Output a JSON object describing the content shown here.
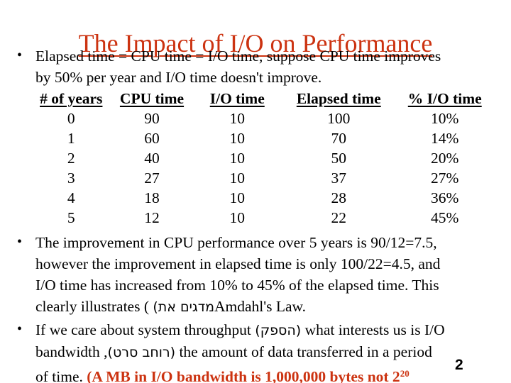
{
  "slide_title": "The Impact of I/O on Performance",
  "page_number": "2",
  "bullet_char": "•",
  "bullet1": {
    "line1": "Elapsed time = CPU time = I/O time, suppose CPU time improves",
    "line2": "by 50% per year and I/O time doesn't improve."
  },
  "table": {
    "headers": [
      "# of years",
      "CPU time",
      "I/O time",
      "Elapsed time",
      "% I/O time"
    ],
    "rows": [
      [
        "0",
        "90",
        "10",
        "100",
        "10%"
      ],
      [
        "1",
        "60",
        "10",
        "70",
        "14%"
      ],
      [
        "2",
        "40",
        "10",
        "50",
        "20%"
      ],
      [
        "3",
        "27",
        "10",
        "37",
        "27%"
      ],
      [
        "4",
        "18",
        "10",
        "28",
        "36%"
      ],
      [
        "5",
        "12",
        "10",
        "22",
        "45%"
      ]
    ]
  },
  "bullet2": {
    "line1": "The improvement in CPU performance over 5 years is 90/12=7.5,",
    "line2": "however the improvement in elapsed time is only 100/22=4.5, and",
    "line3": "I/O time has increased from 10% to 45% of the elapsed time. This",
    "line4_pre": "clearly illustrates ( ",
    "line4_hebrew_visual": "(תא םיגדמ",
    "line4_post": "Amdahl's Law."
  },
  "bullet3": {
    "line1_pre": "If we care about system throughput ",
    "line1_hebrew_visual": "(קפסה)",
    "line1_post": " what interests us is I/O",
    "line2_pre": "bandwidth ,",
    "line2_hebrew_visual": "(טרס בחור)",
    "line2_post": " the amount of data transferred in a period",
    "line3_pre": "of time. ",
    "line3_red": "(A MB in I/O bandwidth is 1,000,000 bytes not 2",
    "line3_red_sup": "20"
  },
  "colors": {
    "accent_red": "#cc3311",
    "text_black": "#000000",
    "background": "#ffffff"
  }
}
